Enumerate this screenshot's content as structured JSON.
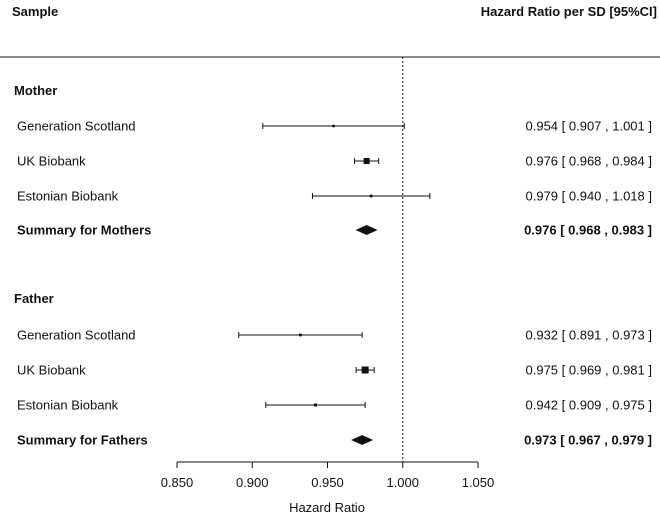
{
  "chart_data": {
    "type": "forest",
    "columns": {
      "left": "Sample",
      "right": "Hazard Ratio per SD [95%CI]"
    },
    "xlabel": "Hazard Ratio",
    "xlim": [
      0.85,
      1.05
    ],
    "xticks": [
      "0.850",
      "0.900",
      "0.950",
      "1.000",
      "1.050"
    ],
    "reference_line": 1.0,
    "groups": [
      {
        "name": "Mother",
        "studies": [
          {
            "label": "Generation Scotland",
            "hr": 0.954,
            "lo": 0.907,
            "hi": 1.001,
            "ci_text": "0.954 [ 0.907 , 1.001 ]"
          },
          {
            "label": "UK Biobank",
            "hr": 0.976,
            "lo": 0.968,
            "hi": 0.984,
            "ci_text": "0.976 [ 0.968 , 0.984 ]"
          },
          {
            "label": "Estonian Biobank",
            "hr": 0.979,
            "lo": 0.94,
            "hi": 1.018,
            "ci_text": "0.979 [ 0.940 , 1.018 ]"
          }
        ],
        "summary": {
          "label": "Summary for Mothers",
          "hr": 0.976,
          "lo": 0.968,
          "hi": 0.983,
          "ci_text": "0.976 [ 0.968 , 0.983 ]"
        }
      },
      {
        "name": "Father",
        "studies": [
          {
            "label": "Generation Scotland",
            "hr": 0.932,
            "lo": 0.891,
            "hi": 0.973,
            "ci_text": "0.932 [ 0.891 , 0.973 ]"
          },
          {
            "label": "UK Biobank",
            "hr": 0.975,
            "lo": 0.969,
            "hi": 0.981,
            "ci_text": "0.975 [ 0.969 , 0.981 ]"
          },
          {
            "label": "Estonian Biobank",
            "hr": 0.942,
            "lo": 0.909,
            "hi": 0.975,
            "ci_text": "0.942 [ 0.909 , 0.975 ]"
          }
        ],
        "summary": {
          "label": "Summary for Fathers",
          "hr": 0.973,
          "lo": 0.967,
          "hi": 0.979,
          "ci_text": "0.973 [ 0.967 , 0.979 ]"
        }
      }
    ]
  }
}
